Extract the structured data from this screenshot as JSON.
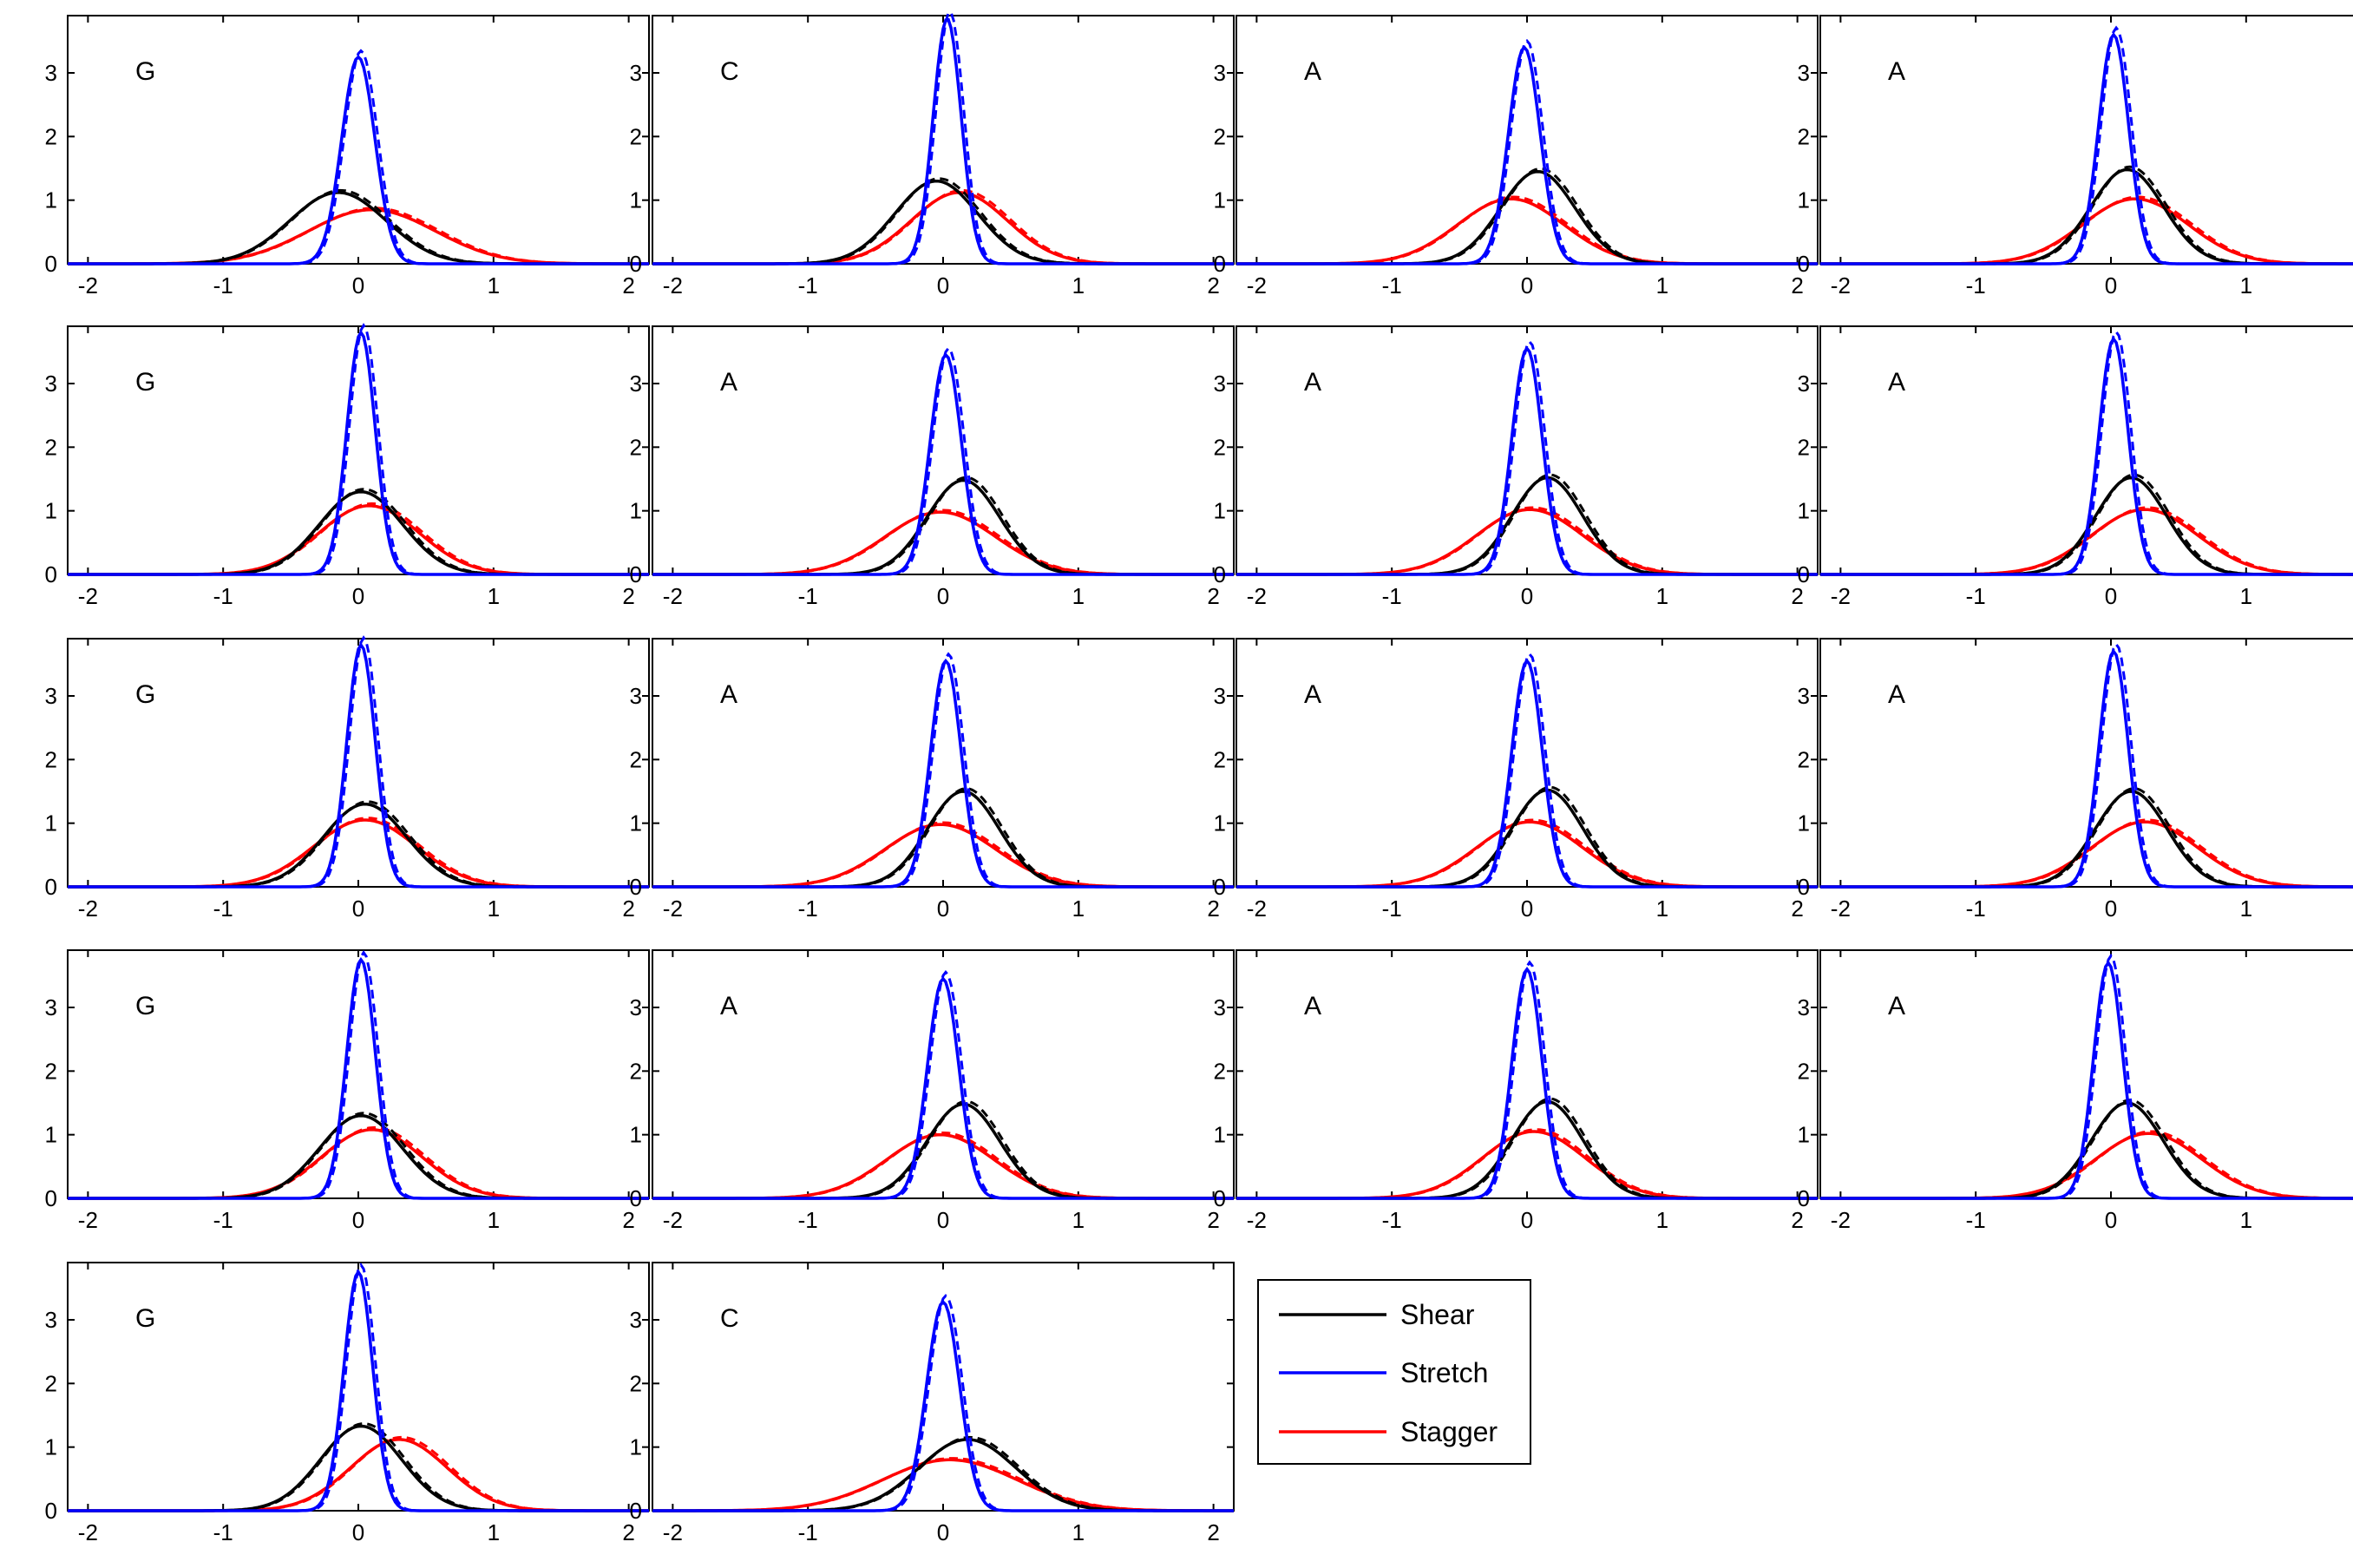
{
  "chart_data": {
    "type": "line",
    "xlim": [
      -2.15,
      2.15
    ],
    "ylim": [
      0,
      3.9
    ],
    "xticks": [
      -2,
      -1,
      0,
      1,
      2
    ],
    "yticks": [
      0,
      1,
      2,
      3
    ],
    "grid": false,
    "legend": {
      "placement": "row-5-column-3",
      "entries": [
        {
          "name": "Shear",
          "color": "#000000"
        },
        {
          "name": "Stretch",
          "color": "#0000ff"
        },
        {
          "name": "Stagger",
          "color": "#ff0000"
        }
      ]
    },
    "colors": {
      "Shear": "#000000",
      "Stretch": "#0000ff",
      "Stagger": "#ff0000"
    },
    "panels": [
      {
        "label": "G",
        "row": 0,
        "col": 0,
        "series": [
          {
            "name": "Shear",
            "mean": -0.15,
            "peak": 1.12
          },
          {
            "name": "Stretch",
            "mean": 0.0,
            "peak": 3.25
          },
          {
            "name": "Stagger",
            "mean": 0.1,
            "peak": 0.85
          }
        ]
      },
      {
        "label": "C",
        "row": 0,
        "col": 1,
        "series": [
          {
            "name": "Shear",
            "mean": -0.05,
            "peak": 1.3
          },
          {
            "name": "Stretch",
            "mean": 0.03,
            "peak": 3.85
          },
          {
            "name": "Stagger",
            "mean": 0.12,
            "peak": 1.12
          }
        ]
      },
      {
        "label": "A",
        "row": 0,
        "col": 2,
        "series": [
          {
            "name": "Shear",
            "mean": 0.08,
            "peak": 1.45
          },
          {
            "name": "Stretch",
            "mean": -0.02,
            "peak": 3.4
          },
          {
            "name": "Stagger",
            "mean": -0.12,
            "peak": 1.02
          }
        ]
      },
      {
        "label": "A",
        "row": 0,
        "col": 3,
        "series": [
          {
            "name": "Shear",
            "mean": 0.12,
            "peak": 1.48
          },
          {
            "name": "Stretch",
            "mean": 0.02,
            "peak": 3.6
          },
          {
            "name": "Stagger",
            "mean": 0.18,
            "peak": 1.02
          }
        ]
      },
      {
        "label": "G",
        "row": 1,
        "col": 0,
        "series": [
          {
            "name": "Shear",
            "mean": 0.02,
            "peak": 1.3
          },
          {
            "name": "Stretch",
            "mean": 0.02,
            "peak": 3.8
          },
          {
            "name": "Stagger",
            "mean": 0.08,
            "peak": 1.08
          }
        ]
      },
      {
        "label": "A",
        "row": 1,
        "col": 1,
        "series": [
          {
            "name": "Shear",
            "mean": 0.15,
            "peak": 1.48
          },
          {
            "name": "Stretch",
            "mean": 0.02,
            "peak": 3.45
          },
          {
            "name": "Stagger",
            "mean": -0.02,
            "peak": 0.98
          }
        ]
      },
      {
        "label": "A",
        "row": 1,
        "col": 2,
        "series": [
          {
            "name": "Shear",
            "mean": 0.15,
            "peak": 1.52
          },
          {
            "name": "Stretch",
            "mean": 0.0,
            "peak": 3.55
          },
          {
            "name": "Stagger",
            "mean": 0.02,
            "peak": 1.02
          }
        ]
      },
      {
        "label": "A",
        "row": 1,
        "col": 3,
        "series": [
          {
            "name": "Shear",
            "mean": 0.15,
            "peak": 1.52
          },
          {
            "name": "Stretch",
            "mean": 0.02,
            "peak": 3.7
          },
          {
            "name": "Stagger",
            "mean": 0.25,
            "peak": 1.02
          }
        ]
      },
      {
        "label": "G",
        "row": 2,
        "col": 0,
        "series": [
          {
            "name": "Shear",
            "mean": 0.05,
            "peak": 1.3
          },
          {
            "name": "Stretch",
            "mean": 0.02,
            "peak": 3.8
          },
          {
            "name": "Stagger",
            "mean": 0.05,
            "peak": 1.05
          }
        ]
      },
      {
        "label": "A",
        "row": 2,
        "col": 1,
        "series": [
          {
            "name": "Shear",
            "mean": 0.15,
            "peak": 1.5
          },
          {
            "name": "Stretch",
            "mean": 0.02,
            "peak": 3.55
          },
          {
            "name": "Stagger",
            "mean": -0.02,
            "peak": 0.98
          }
        ]
      },
      {
        "label": "A",
        "row": 2,
        "col": 2,
        "series": [
          {
            "name": "Shear",
            "mean": 0.15,
            "peak": 1.52
          },
          {
            "name": "Stretch",
            "mean": 0.0,
            "peak": 3.55
          },
          {
            "name": "Stagger",
            "mean": 0.02,
            "peak": 1.02
          }
        ]
      },
      {
        "label": "A",
        "row": 2,
        "col": 3,
        "series": [
          {
            "name": "Shear",
            "mean": 0.15,
            "peak": 1.5
          },
          {
            "name": "Stretch",
            "mean": 0.02,
            "peak": 3.7
          },
          {
            "name": "Stagger",
            "mean": 0.25,
            "peak": 1.02
          }
        ]
      },
      {
        "label": "G",
        "row": 3,
        "col": 0,
        "series": [
          {
            "name": "Shear",
            "mean": 0.02,
            "peak": 1.3
          },
          {
            "name": "Stretch",
            "mean": 0.02,
            "peak": 3.75
          },
          {
            "name": "Stagger",
            "mean": 0.1,
            "peak": 1.08
          }
        ]
      },
      {
        "label": "A",
        "row": 3,
        "col": 1,
        "series": [
          {
            "name": "Shear",
            "mean": 0.15,
            "peak": 1.48
          },
          {
            "name": "Stretch",
            "mean": 0.0,
            "peak": 3.45
          },
          {
            "name": "Stagger",
            "mean": -0.02,
            "peak": 1.0
          }
        ]
      },
      {
        "label": "A",
        "row": 3,
        "col": 2,
        "series": [
          {
            "name": "Shear",
            "mean": 0.15,
            "peak": 1.52
          },
          {
            "name": "Stretch",
            "mean": 0.0,
            "peak": 3.6
          },
          {
            "name": "Stagger",
            "mean": 0.05,
            "peak": 1.05
          }
        ]
      },
      {
        "label": "A",
        "row": 3,
        "col": 3,
        "series": [
          {
            "name": "Shear",
            "mean": 0.12,
            "peak": 1.5
          },
          {
            "name": "Stretch",
            "mean": -0.02,
            "peak": 3.7
          },
          {
            "name": "Stagger",
            "mean": 0.28,
            "peak": 1.02
          }
        ]
      },
      {
        "label": "G",
        "row": 4,
        "col": 0,
        "series": [
          {
            "name": "Shear",
            "mean": 0.02,
            "peak": 1.33
          },
          {
            "name": "Stretch",
            "mean": 0.0,
            "peak": 3.75
          },
          {
            "name": "Stagger",
            "mean": 0.3,
            "peak": 1.12
          }
        ]
      },
      {
        "label": "C",
        "row": 4,
        "col": 1,
        "series": [
          {
            "name": "Shear",
            "mean": 0.18,
            "peak": 1.12
          },
          {
            "name": "Stretch",
            "mean": 0.0,
            "peak": 3.28
          },
          {
            "name": "Stagger",
            "mean": 0.05,
            "peak": 0.8
          }
        ]
      }
    ]
  }
}
